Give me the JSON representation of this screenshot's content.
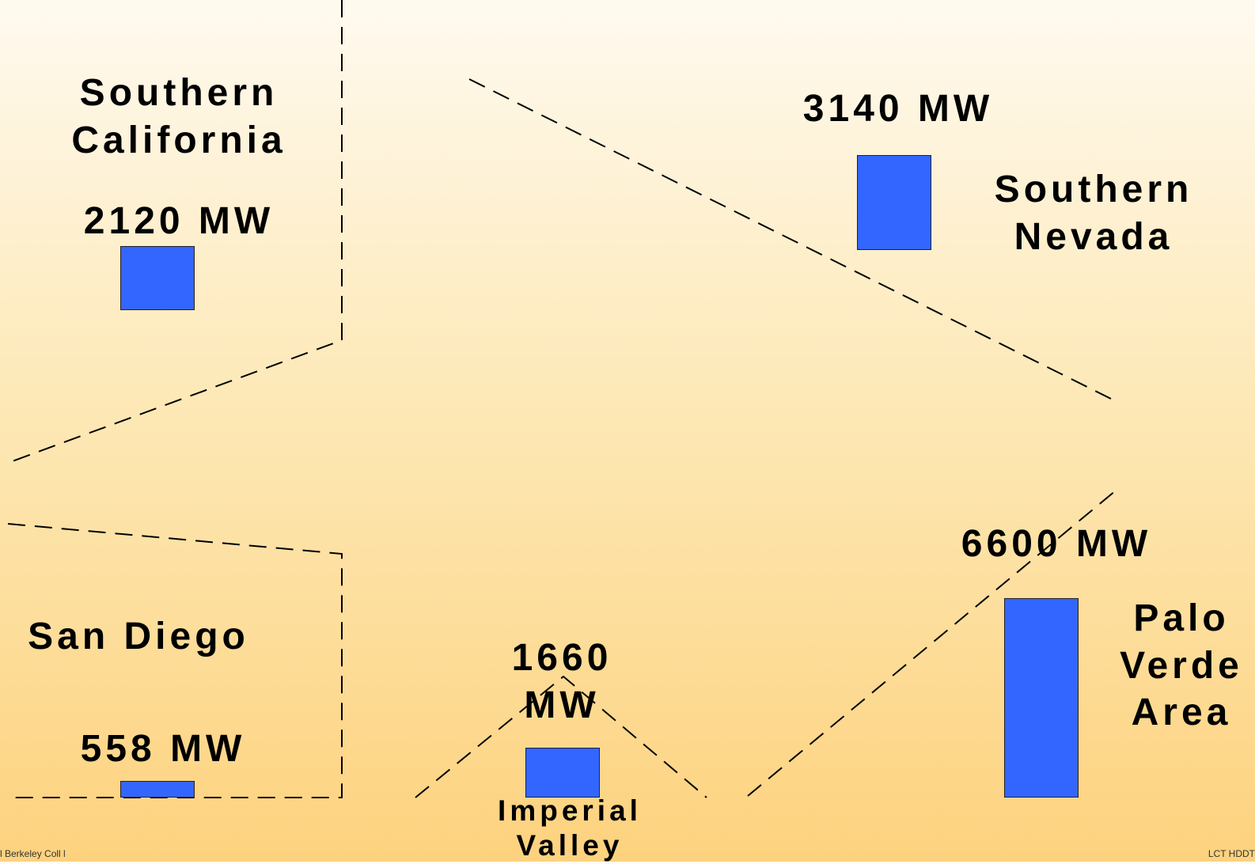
{
  "colors": {
    "bar": "#3366ff",
    "divider": "#000000"
  },
  "regions": {
    "southern_california": {
      "name_line1": "Southern",
      "name_line2": "California",
      "capacity": "2120 MW",
      "value_mw": 2120
    },
    "southern_nevada": {
      "name_line1": "Southern",
      "name_line2": "Nevada",
      "capacity": "3140 MW",
      "value_mw": 3140
    },
    "san_diego": {
      "name": "San Diego",
      "capacity": "558 MW",
      "value_mw": 558
    },
    "imperial_valley": {
      "name_line1": "Imperial",
      "name_line2": "Valley",
      "capacity_line1": "1660",
      "capacity_line2": "MW",
      "value_mw": 1660
    },
    "palo_verde": {
      "name_line1": "Palo",
      "name_line2": "Verde",
      "name_line3": "Area",
      "capacity": "6600 MW",
      "value_mw": 6600
    }
  },
  "footer": {
    "left": "l Berkeley Coll l",
    "right": "LCT HDDT"
  }
}
